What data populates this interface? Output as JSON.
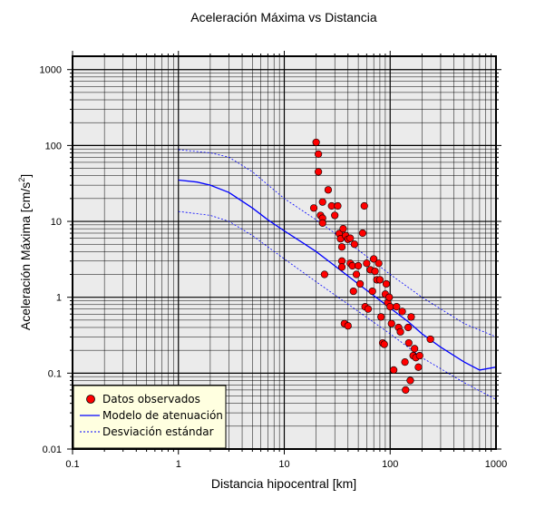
{
  "chart_data": {
    "type": "scatter",
    "title": "Aceleración Máxima vs Distancia",
    "xlabel": "Distancia hipocentral [km]",
    "ylabel_main": "Aceleración Máxima [cm/s",
    "ylabel_sup": "2",
    "ylabel_close": "]",
    "xscale": "log",
    "yscale": "log",
    "xlim": [
      0.1,
      1000
    ],
    "ylim": [
      0.01,
      1500
    ],
    "grid": true,
    "legend_position": "bottom-left",
    "x_tick_labels": [
      "0.1",
      "1",
      "10",
      "100",
      "1000"
    ],
    "y_tick_labels": [
      "0.01",
      "0.1",
      "1",
      "10",
      "100",
      "1000"
    ],
    "colors": {
      "points": "#ff0000",
      "point_edge": "#000000",
      "model": "#0000ff",
      "std": "#0000ff",
      "plot_background": "#ebebeb",
      "legend_background": "#ffffe0"
    },
    "series": [
      {
        "name": "Datos observados",
        "style": "points",
        "points": [
          [
            20,
            110
          ],
          [
            21,
            77
          ],
          [
            21,
            45
          ],
          [
            19,
            15
          ],
          [
            23,
            18
          ],
          [
            22,
            12
          ],
          [
            23,
            11
          ],
          [
            23,
            9.5
          ],
          [
            24,
            2.0
          ],
          [
            26,
            26
          ],
          [
            28,
            16
          ],
          [
            30,
            12
          ],
          [
            32,
            16
          ],
          [
            33,
            6.9
          ],
          [
            34,
            5.9
          ],
          [
            35,
            4.6
          ],
          [
            35,
            3.0
          ],
          [
            35,
            2.5
          ],
          [
            36,
            8.0
          ],
          [
            38,
            6.5
          ],
          [
            40,
            5.8
          ],
          [
            42,
            6.0
          ],
          [
            42,
            2.8
          ],
          [
            44,
            2.6
          ],
          [
            45,
            1.2
          ],
          [
            46,
            5.0
          ],
          [
            48,
            2.0
          ],
          [
            50,
            2.6
          ],
          [
            52,
            1.5
          ],
          [
            55,
            7.0
          ],
          [
            57,
            16
          ],
          [
            58,
            0.75
          ],
          [
            60,
            2.8
          ],
          [
            62,
            0.7
          ],
          [
            65,
            2.3
          ],
          [
            68,
            1.2
          ],
          [
            70,
            3.2
          ],
          [
            72,
            2.2
          ],
          [
            75,
            1.7
          ],
          [
            78,
            2.8
          ],
          [
            80,
            1.7
          ],
          [
            82,
            0.55
          ],
          [
            85,
            0.25
          ],
          [
            88,
            0.24
          ],
          [
            90,
            1.1
          ],
          [
            92,
            1.5
          ],
          [
            95,
            0.85
          ],
          [
            98,
            1.0
          ],
          [
            100,
            0.75
          ],
          [
            103,
            0.45
          ],
          [
            108,
            0.11
          ],
          [
            115,
            0.75
          ],
          [
            120,
            0.4
          ],
          [
            125,
            0.35
          ],
          [
            130,
            0.65
          ],
          [
            138,
            0.14
          ],
          [
            140,
            0.06
          ],
          [
            148,
            0.4
          ],
          [
            150,
            0.25
          ],
          [
            155,
            0.08
          ],
          [
            158,
            0.55
          ],
          [
            165,
            0.17
          ],
          [
            170,
            0.21
          ],
          [
            175,
            0.16
          ],
          [
            185,
            0.12
          ],
          [
            190,
            0.17
          ],
          [
            240,
            0.28
          ],
          [
            37,
            0.45
          ],
          [
            40,
            0.42
          ]
        ]
      },
      {
        "name": "Modelo de atenuación",
        "style": "solid",
        "points": [
          [
            1,
            35
          ],
          [
            1.5,
            33
          ],
          [
            2,
            30
          ],
          [
            3,
            24
          ],
          [
            5,
            15
          ],
          [
            7,
            10.5
          ],
          [
            10,
            7.5
          ],
          [
            15,
            5.2
          ],
          [
            20,
            4.0
          ],
          [
            30,
            2.6
          ],
          [
            50,
            1.5
          ],
          [
            70,
            1.05
          ],
          [
            100,
            0.72
          ],
          [
            150,
            0.47
          ],
          [
            200,
            0.33
          ],
          [
            300,
            0.22
          ],
          [
            500,
            0.14
          ],
          [
            700,
            0.11
          ],
          [
            1000,
            0.12
          ]
        ]
      },
      {
        "name": "Desviación estándar",
        "style": "dashed",
        "points": [
          [
            1,
            88
          ],
          [
            2,
            80
          ],
          [
            3,
            70
          ],
          [
            5,
            45
          ],
          [
            10,
            20
          ],
          [
            20,
            10.5
          ],
          [
            50,
            4.2
          ],
          [
            100,
            2.0
          ],
          [
            200,
            1.0
          ],
          [
            500,
            0.45
          ],
          [
            1000,
            0.3
          ]
        ]
      },
      {
        "name": "Desviación estándar",
        "style": "dashed",
        "points": [
          [
            1,
            13.5
          ],
          [
            2,
            12
          ],
          [
            3,
            10
          ],
          [
            5,
            6.5
          ],
          [
            10,
            3.2
          ],
          [
            20,
            1.6
          ],
          [
            50,
            0.65
          ],
          [
            100,
            0.33
          ],
          [
            200,
            0.16
          ],
          [
            500,
            0.075
          ],
          [
            1000,
            0.045
          ]
        ]
      }
    ]
  }
}
